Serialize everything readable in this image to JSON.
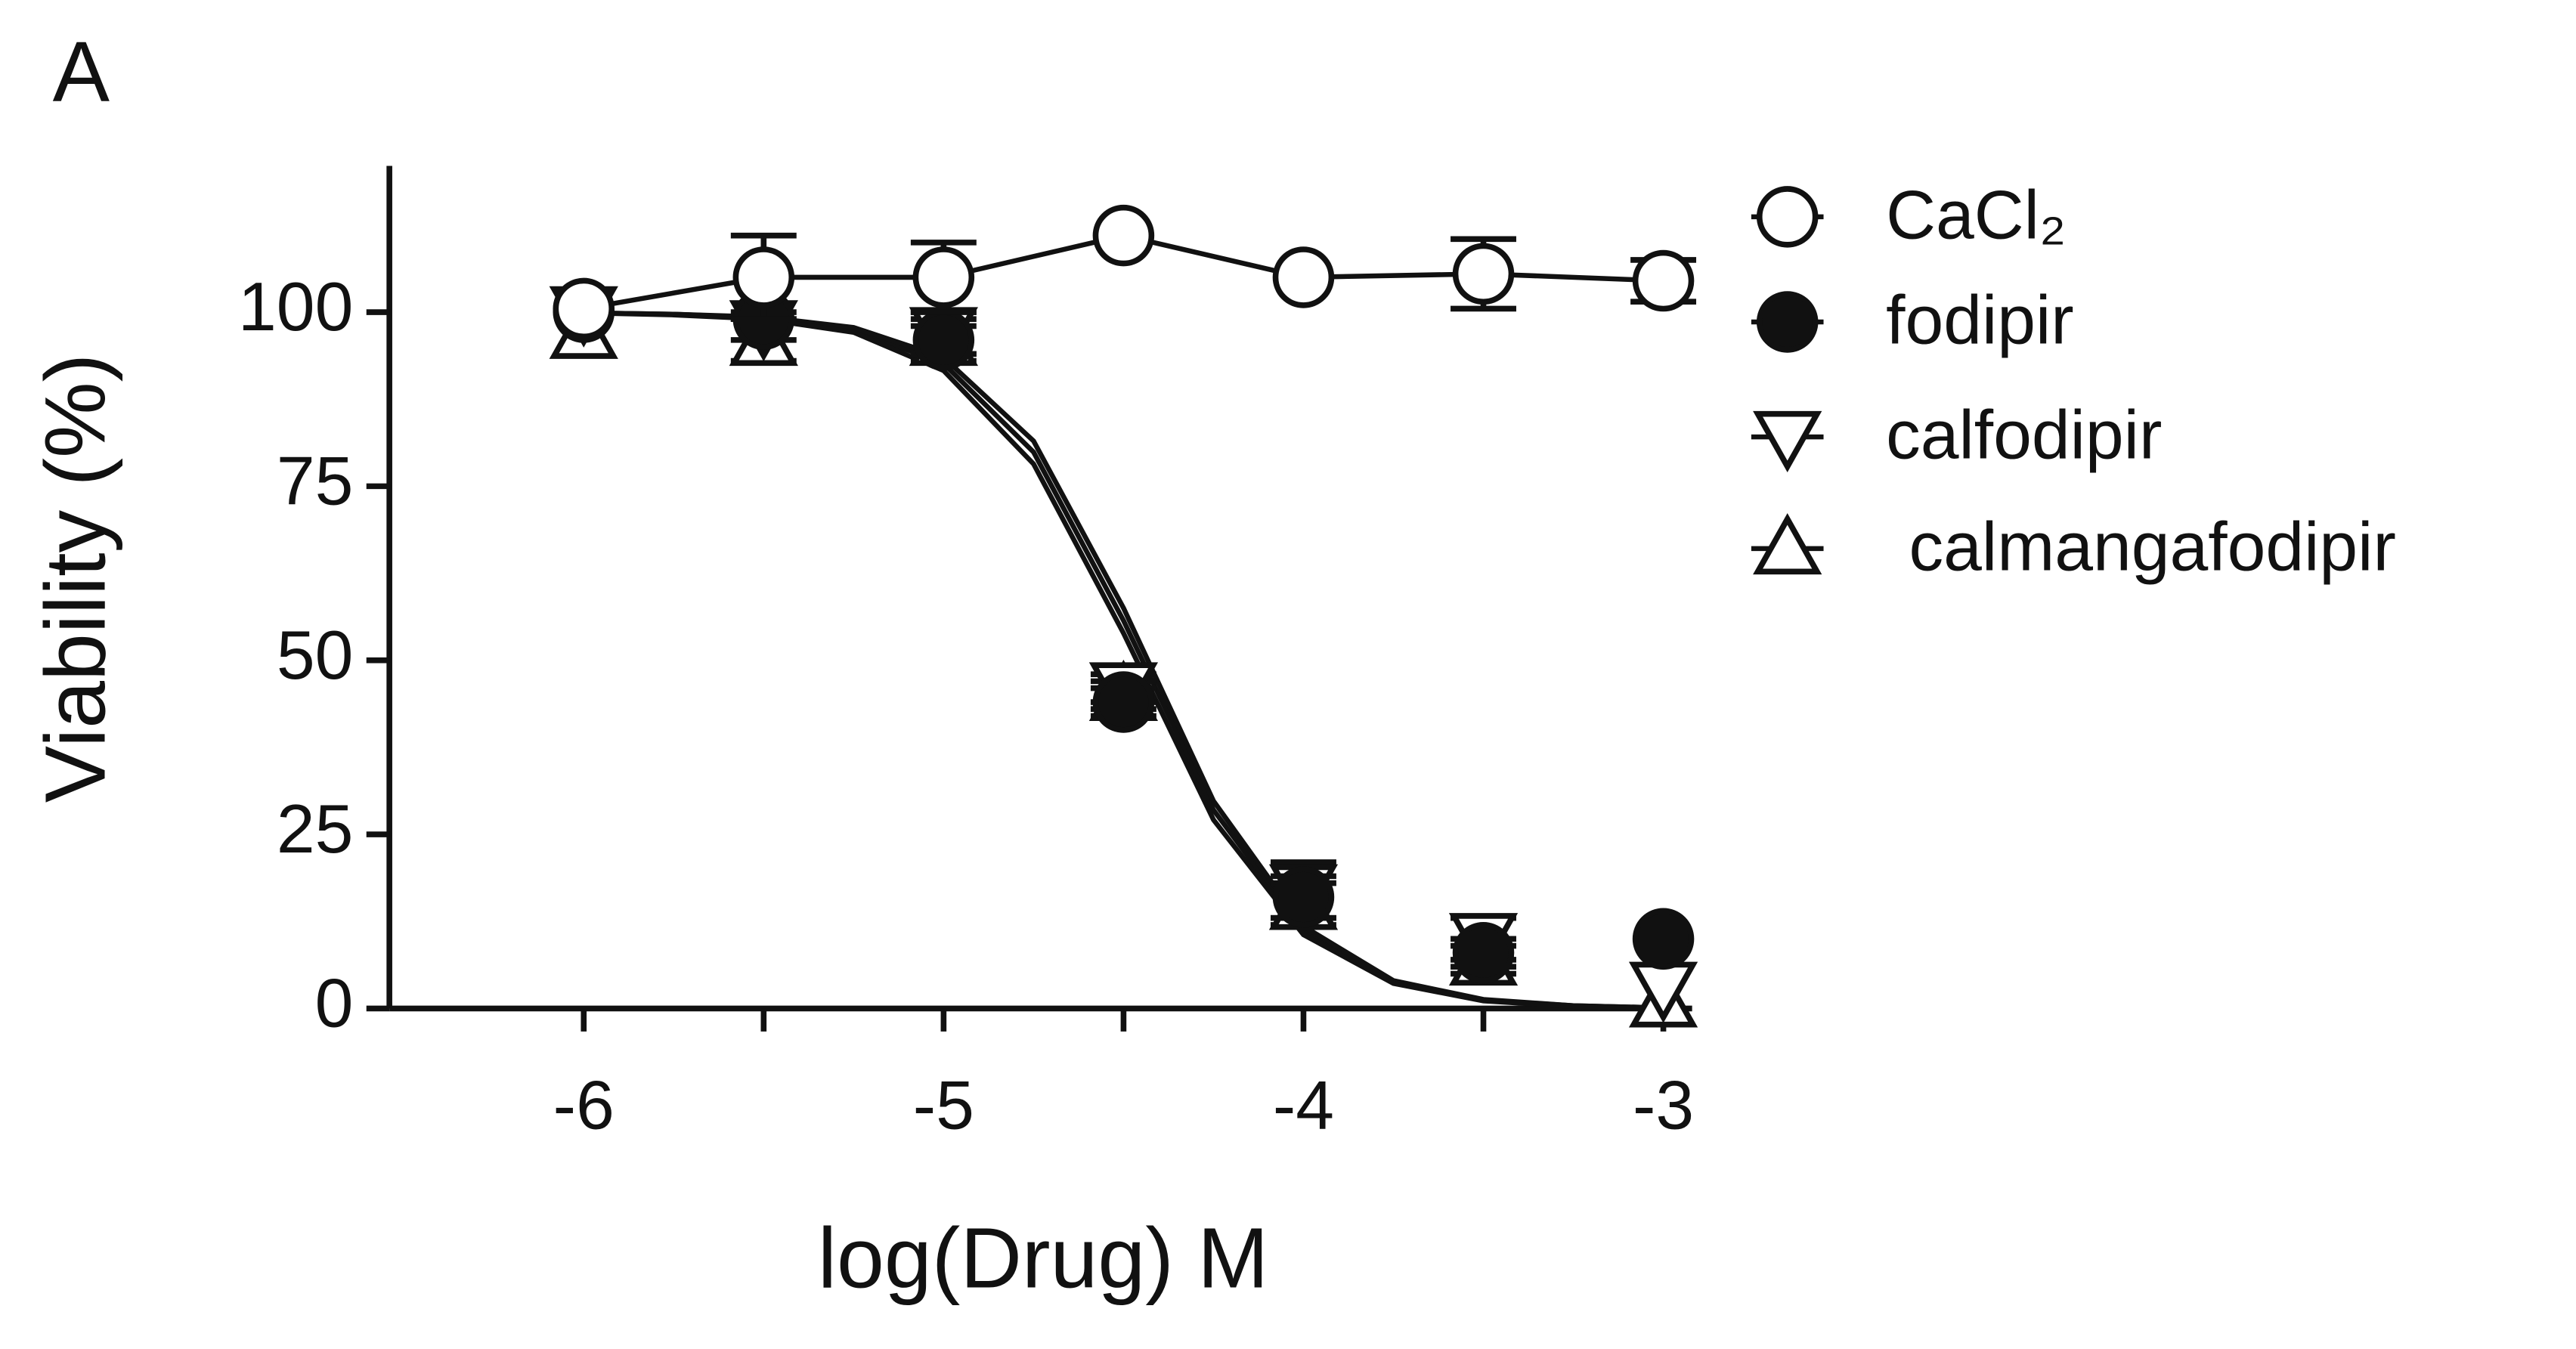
{
  "chart_data": {
    "type": "scatter",
    "panel_label": "A",
    "xlabel": "log(Drug) M",
    "ylabel": "Viability (%)",
    "x": [
      -6,
      -5.5,
      -5,
      -4.5,
      -4,
      -3.5,
      -3
    ],
    "xlim": [
      -6.54,
      -2.92
    ],
    "ylim": [
      0,
      121
    ],
    "xticks": [
      -6,
      -5,
      -4,
      -3
    ],
    "xminorticks": [
      -5.5,
      -4.5,
      -3.5
    ],
    "yticks": [
      0,
      25,
      50,
      75,
      100
    ],
    "fit_x": [
      -6,
      -5.75,
      -5.5,
      -5.25,
      -5,
      -4.75,
      -4.5,
      -4.25,
      -4,
      -3.75,
      -3.5,
      -3.25,
      -3
    ],
    "series": [
      {
        "name": "CaCl₂",
        "marker": "circle-open",
        "color": "#111111",
        "values": [
          100.5,
          105,
          105,
          111,
          105,
          105.5,
          104.5
        ],
        "errors": [
          0,
          6,
          5,
          0,
          0,
          5,
          3
        ]
      },
      {
        "name": "fodipir",
        "marker": "circle-filled",
        "color": "#111111",
        "values": [
          100,
          99,
          96,
          44,
          16,
          8,
          10
        ],
        "errors": [
          0,
          0,
          2,
          2,
          3,
          2,
          0
        ],
        "fit_values": [
          99.9,
          99.7,
          99.2,
          97.5,
          92.6,
          79.9,
          55.7,
          28.5,
          11.2,
          3.8,
          1.2,
          0.4,
          0.1
        ]
      },
      {
        "name": "calfodipir",
        "marker": "triangle-down",
        "color": "#111111",
        "values": [
          100,
          98,
          97,
          46,
          17,
          10,
          3
        ],
        "errors": [
          0,
          2,
          3,
          2,
          4,
          3,
          0
        ],
        "fit_values": [
          99.9,
          99.7,
          99.3,
          97.8,
          93.5,
          81.5,
          57.5,
          29.8,
          11.8,
          4.0,
          1.3,
          0.4,
          0.1
        ]
      },
      {
        "name": "calmangafodipir",
        "marker": "triangle-up",
        "color": "#111111",
        "values": [
          97,
          96,
          96,
          45,
          15,
          7,
          1
        ],
        "errors": [
          0,
          3,
          3,
          2,
          3,
          2,
          0
        ],
        "fit_values": [
          99.9,
          99.6,
          99.0,
          97.1,
          91.6,
          78.2,
          53.9,
          27.1,
          10.6,
          3.6,
          1.1,
          0.3,
          0.1
        ]
      }
    ]
  }
}
